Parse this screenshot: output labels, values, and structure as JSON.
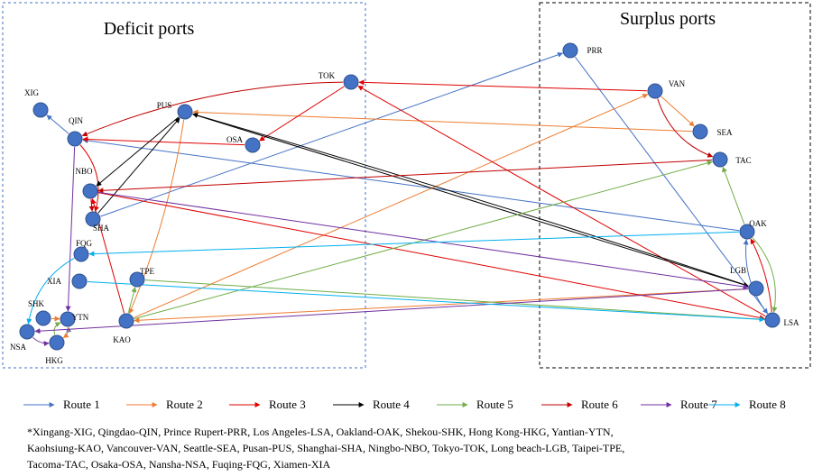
{
  "titles": {
    "deficit": "Deficit ports",
    "surplus": "Surplus ports"
  },
  "nodes": [
    {
      "label": "XIG"
    },
    {
      "label": "QIN"
    },
    {
      "label": "PUS"
    },
    {
      "label": "TOK"
    },
    {
      "label": "OSA"
    },
    {
      "label": "NBO"
    },
    {
      "label": "SHA"
    },
    {
      "label": "FQG"
    },
    {
      "label": "XIA"
    },
    {
      "label": "TPE"
    },
    {
      "label": "SHK"
    },
    {
      "label": "YTN"
    },
    {
      "label": "KAO"
    },
    {
      "label": "NSA"
    },
    {
      "label": "HKG"
    },
    {
      "label": "PRR"
    },
    {
      "label": "VAN"
    },
    {
      "label": "SEA"
    },
    {
      "label": "TAC"
    },
    {
      "label": "OAK"
    },
    {
      "label": "LGB"
    },
    {
      "label": "LSA"
    }
  ],
  "legend": [
    "Route 1",
    "Route 2",
    "Route 3",
    "Route 4",
    "Route 5",
    "Route 6",
    "Route 7",
    "Route 8"
  ],
  "footnote": [
    "*Xingang-XIG, Qingdao-QIN, Prince Rupert-PRR, Los Angeles-LSA, Oakland-OAK, Shekou-SHK, Hong Kong-HKG, Yantian-YTN,",
    "Kaohsiung-KAO, Vancouver-VAN, Seattle-SEA, Pusan-PUS, Shanghai-SHA, Ningbo-NBO, Tokyo-TOK, Long beach-LGB, Taipei-TPE,",
    "Tacoma-TAC, Osaka-OSA, Nansha-NSA, Fuqing-FQG, Xiamen-XIA"
  ]
}
